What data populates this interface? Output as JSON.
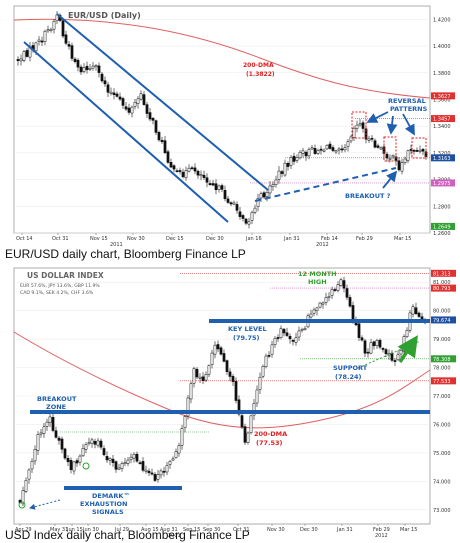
{
  "chart_data": [
    {
      "type": "candlestick",
      "title": "EUR/USD (Daily)",
      "caption": "EUR/USD daily chart, Bloomberg Finance LP",
      "ylim": [
        1.26,
        1.43
      ],
      "y_ticks": [
        "1.4200",
        "1.4000",
        "1.3800",
        "1.3600",
        "1.3400",
        "1.3200",
        "1.3000",
        "1.2800",
        "1.2600"
      ],
      "x_ticks": [
        "Oct 14",
        "Oct 31",
        "Nov 15",
        "Nov 30",
        "Dec 15",
        "Dec 30",
        "Jan 16",
        "Jan 31",
        "Feb 14",
        "Feb 29",
        "Mar 15"
      ],
      "year_ticks": [
        "2011",
        "2012"
      ],
      "price_tags": [
        {
          "text": "1.3627",
          "value": 1.3627,
          "color": "#e03030"
        },
        {
          "text": "1.3457",
          "value": 1.3457,
          "color": "#e03030"
        },
        {
          "text": "1.3163",
          "value": 1.3163,
          "color": "#1f4fa0"
        },
        {
          "text": "1.2975",
          "value": 1.2975,
          "color": "#d060c0"
        },
        {
          "text": "1.2649",
          "value": 1.2649,
          "color": "#30a030"
        }
      ],
      "annotations": [
        {
          "lines": [
            "200-DMA",
            "(1.3822)"
          ],
          "color": "#e02020"
        },
        {
          "lines": [
            "REVERSAL",
            "PATTERNS"
          ],
          "color": "#1f5fb0"
        },
        {
          "lines": [
            "BREAKOUT ?"
          ],
          "color": "#1f5fb0"
        }
      ],
      "colors": {
        "channel": "#1f5fb0",
        "dma": "#e06060",
        "up_candle": "#ffffff",
        "down_candle": "#111111",
        "pattern_box": "#e02020"
      }
    },
    {
      "type": "candlestick",
      "title": "US DOLLAR INDEX",
      "caption": "USD Index daily chart, Bloomberg Finance LP",
      "legend_lines": [
        "EUR 57.6%, JPY 13.6%, GBP 11.9%",
        "CAD 9.1%, SEK 4.2%, CHF 3.6%"
      ],
      "ylim": [
        72.5,
        81.5
      ],
      "y_ticks": [
        "81.000",
        "80.000",
        "79.000",
        "78.000",
        "77.000",
        "76.000",
        "75.000",
        "74.000",
        "73.000"
      ],
      "x_ticks": [
        "Apr 29",
        "May 31",
        "Jun 15",
        "Jun 30",
        "Jul 29",
        "Aug 15",
        "Aug 31",
        "Sep 15",
        "Sep 30",
        "Oct 31",
        "Nov 30",
        "Dec 30",
        "Jan 31",
        "Feb 29",
        "Mar 15"
      ],
      "year_ticks": [
        "2011",
        "2012"
      ],
      "price_tags": [
        {
          "text": "81.313",
          "value": 81.313,
          "color": "#e03030"
        },
        {
          "text": "80.793",
          "value": 80.793,
          "color": "#e03030"
        },
        {
          "text": "79.674",
          "value": 79.674,
          "color": "#1f4fa0"
        },
        {
          "text": "78.308",
          "value": 78.308,
          "color": "#30a030"
        },
        {
          "text": "77.533",
          "value": 77.533,
          "color": "#e03030"
        }
      ],
      "annotations": [
        {
          "lines": [
            "12 MONTH",
            "HIGH"
          ],
          "color": "#30a030"
        },
        {
          "lines": [
            "KEY LEVEL",
            "(79.75)"
          ],
          "color": "#1f5fb0"
        },
        {
          "lines": [
            "SUPPORT",
            "(78.24)"
          ],
          "color": "#1f5fb0"
        },
        {
          "lines": [
            "BREAKOUT",
            "ZONE"
          ],
          "color": "#1f5fb0"
        },
        {
          "lines": [
            "200-DMA",
            "(77.53)"
          ],
          "color": "#e02020"
        },
        {
          "lines": [
            "DEMARK™",
            "EXHAUSTION",
            "SIGNALS"
          ],
          "color": "#1f5fb0"
        }
      ],
      "levels": {
        "key_level": 79.75,
        "breakout_zone": 76.55,
        "demark_low": 74.2
      },
      "colors": {
        "level": "#1f5fb0",
        "dma": "#e06060",
        "arrow": "#30a030"
      }
    }
  ]
}
